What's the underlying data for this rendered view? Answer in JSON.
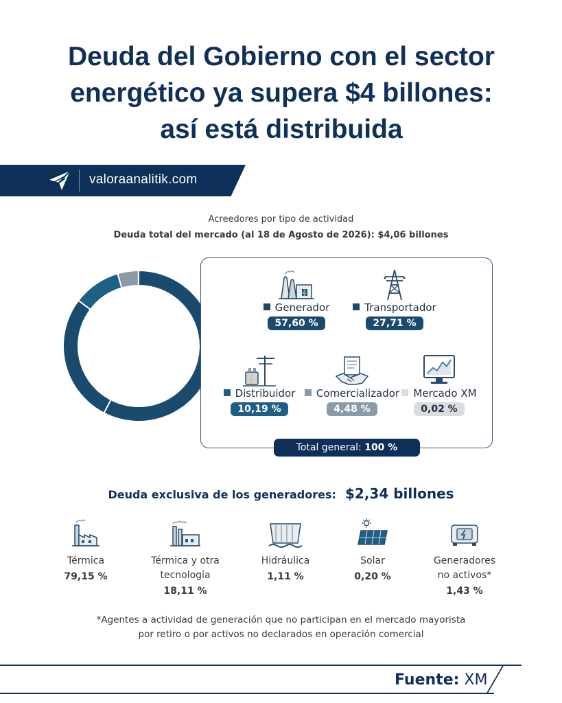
{
  "title": {
    "line1": "Deuda del Gobierno con el sector",
    "line2": "energético ya supera $4 billones:",
    "line3": "así está distribuida"
  },
  "brand": {
    "site": "valoraanalitik.com",
    "logo_icon": "valora-logo-icon"
  },
  "subtitle": {
    "line1": "Acreedores por tipo de actividad",
    "line2": "Deuda total del mercado (al  18 de Agosto de 2026): $4,06 billones"
  },
  "colors": {
    "navy": "#0e2f57",
    "generador": "#1a4a6e",
    "transportador": "#1a4a6e",
    "distribuidor": "#1e5f85",
    "comercializador": "#8a9aa6",
    "mercado_xm": "#d8dde2"
  },
  "chart_data": {
    "type": "pie",
    "title": "Acreedores por tipo de actividad",
    "categories": [
      "Generador",
      "Transportador",
      "Distribuidor",
      "Comercializador",
      "Mercado XM"
    ],
    "values": [
      57.6,
      27.71,
      10.19,
      4.48,
      0.02
    ],
    "value_labels": [
      "57,60 %",
      "27,71 %",
      "10,19 %",
      "4,48 %",
      "0,02 %"
    ],
    "colors": [
      "#1a4a6e",
      "#1a4a6e",
      "#1e5f85",
      "#8a9aa6",
      "#d8dde2"
    ],
    "legend": "right",
    "total_label": "Total general:",
    "total_value": "100 %"
  },
  "categories": [
    {
      "label": "Generador",
      "value": "57,60 %",
      "icon": "power-plant-icon"
    },
    {
      "label": "Transportador",
      "value": "27,71 %",
      "icon": "transmission-tower-icon"
    },
    {
      "label": "Distribuidor",
      "value": "10,19 %",
      "icon": "distribution-pole-icon"
    },
    {
      "label": "Comercializador",
      "value": "4,48 %",
      "icon": "handshake-contract-icon"
    },
    {
      "label": "Mercado XM",
      "value": "0,02 %",
      "icon": "market-monitor-icon"
    }
  ],
  "total": {
    "label": "Total general:",
    "value": "100 %"
  },
  "generators": {
    "heading": "Deuda exclusiva de los generadores:",
    "amount": "$2,34 billones",
    "items": [
      {
        "line1": "Térmica",
        "line2": "",
        "value": "79,15 %",
        "icon": "thermal-plant-icon"
      },
      {
        "line1": "Térmica y otra",
        "line2": "tecnología",
        "value": "18,11 %",
        "icon": "mixed-thermal-plant-icon"
      },
      {
        "line1": "Hidráulica",
        "line2": "",
        "value": "1,11 %",
        "icon": "hydro-dam-icon"
      },
      {
        "line1": "Solar",
        "line2": "",
        "value": "0,20 %",
        "icon": "solar-panel-icon"
      },
      {
        "line1": "Generadores",
        "line2": "no activos*",
        "value": "1,43 %",
        "icon": "generator-icon"
      }
    ]
  },
  "note": {
    "line1": "*Agentes a actividad de generación que no participan en el mercado mayorista",
    "line2": "por retiro o por activos no  declarados en operación comercial"
  },
  "source": {
    "label": "Fuente:",
    "value": "XM"
  }
}
